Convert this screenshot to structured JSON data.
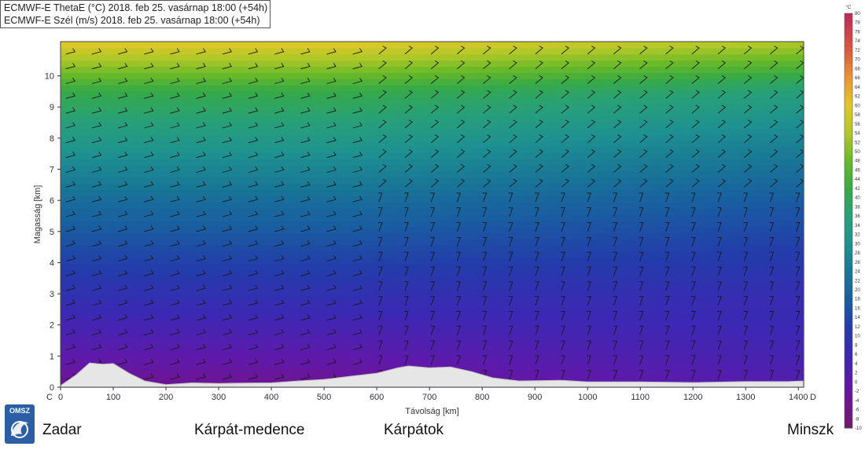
{
  "header": {
    "line1": "ECMWF-E ThetaE (°C) 2018. feb 25. vasárnap 18:00 (+54h)",
    "line2": "ECMWF-E Szél (m/s) 2018. feb 25. vasárnap 18:00 (+54h)"
  },
  "places": {
    "start": "Zadar",
    "mid1": "Kárpát-medence",
    "mid2": "Kárpátok",
    "end": "Minszk"
  },
  "logo": {
    "text": "OMSZ",
    "icon": "omsz-logo"
  },
  "colorbar": {
    "unit": "°C",
    "ticks": [
      80,
      78,
      76,
      74,
      72,
      70,
      68,
      66,
      64,
      62,
      60,
      58,
      56,
      54,
      52,
      50,
      48,
      46,
      44,
      42,
      40,
      38,
      36,
      34,
      32,
      30,
      28,
      26,
      24,
      22,
      20,
      18,
      16,
      14,
      12,
      10,
      8,
      6,
      4,
      2,
      0,
      -2,
      -4,
      -6,
      -8,
      -10
    ]
  },
  "chart_data": {
    "type": "heatmap",
    "xlabel": "Távolság [km]",
    "ylabel": "Magasság [km]",
    "x_ticks": [
      0,
      100,
      200,
      300,
      400,
      500,
      600,
      700,
      800,
      900,
      1000,
      1100,
      1200,
      1300,
      1400
    ],
    "y_ticks": [
      0,
      1,
      2,
      3,
      4,
      5,
      6,
      7,
      8,
      9,
      10
    ],
    "x_left_label": "C",
    "x_right_label": "D",
    "xlim": [
      0,
      1410
    ],
    "ylim": [
      0,
      11.1
    ],
    "terrain_km": [
      [
        0,
        0.05
      ],
      [
        30,
        0.4
      ],
      [
        55,
        0.78
      ],
      [
        80,
        0.74
      ],
      [
        100,
        0.76
      ],
      [
        130,
        0.45
      ],
      [
        160,
        0.2
      ],
      [
        200,
        0.08
      ],
      [
        250,
        0.14
      ],
      [
        300,
        0.12
      ],
      [
        350,
        0.13
      ],
      [
        400,
        0.14
      ],
      [
        450,
        0.2
      ],
      [
        500,
        0.25
      ],
      [
        550,
        0.35
      ],
      [
        600,
        0.45
      ],
      [
        640,
        0.62
      ],
      [
        660,
        0.68
      ],
      [
        700,
        0.62
      ],
      [
        740,
        0.65
      ],
      [
        780,
        0.5
      ],
      [
        820,
        0.3
      ],
      [
        870,
        0.2
      ],
      [
        950,
        0.22
      ],
      [
        1000,
        0.17
      ],
      [
        1100,
        0.17
      ],
      [
        1200,
        0.15
      ],
      [
        1300,
        0.18
      ],
      [
        1380,
        0.18
      ],
      [
        1410,
        0.2
      ]
    ],
    "thetae_range_c": [
      -10,
      80
    ]
  }
}
